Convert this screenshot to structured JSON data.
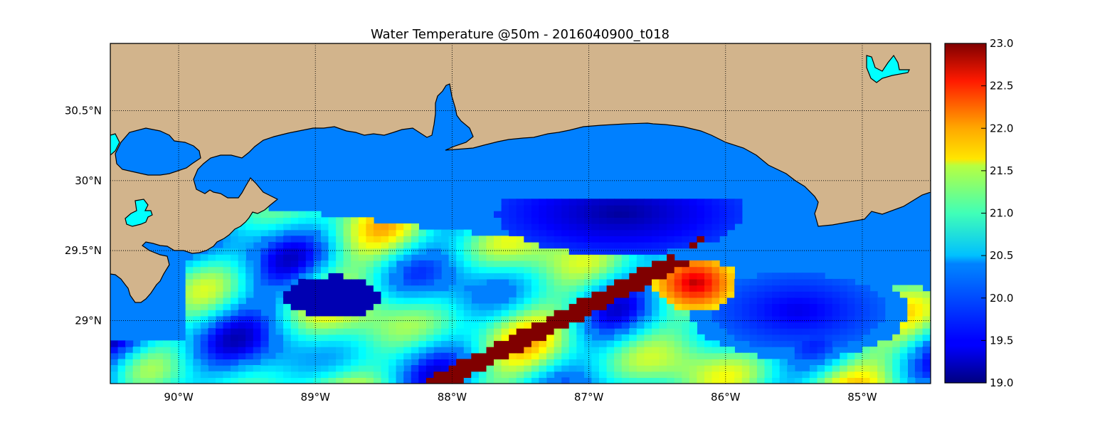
{
  "title": "Water Temperature @50m - 2016040900_t018",
  "map": {
    "lon_range": [
      -90.5,
      -84.5
    ],
    "lat_range": [
      28.55,
      30.98
    ],
    "lon_ticks": [
      {
        "value": -90,
        "label": "90°W"
      },
      {
        "value": -89,
        "label": "89°W"
      },
      {
        "value": -88,
        "label": "88°W"
      },
      {
        "value": -87,
        "label": "87°W"
      },
      {
        "value": -86,
        "label": "86°W"
      },
      {
        "value": -85,
        "label": "85°W"
      }
    ],
    "lat_ticks": [
      {
        "value": 30.5,
        "label": "30.5°N"
      },
      {
        "value": 30.0,
        "label": "30°N"
      },
      {
        "value": 29.5,
        "label": "29.5°N"
      },
      {
        "value": 29.0,
        "label": "29°N"
      }
    ],
    "grid": "dotted",
    "colors": {
      "land": "#d2b48c",
      "ocean": "#0080ff",
      "lakes": "#00ffff",
      "coastline": "#000000"
    }
  },
  "colorbar": {
    "colormap": "jet",
    "range": [
      19.0,
      23.0
    ],
    "ticks": [
      "19.0",
      "19.5",
      "20.0",
      "20.5",
      "21.0",
      "21.5",
      "22.0",
      "22.5",
      "23.0"
    ]
  }
}
